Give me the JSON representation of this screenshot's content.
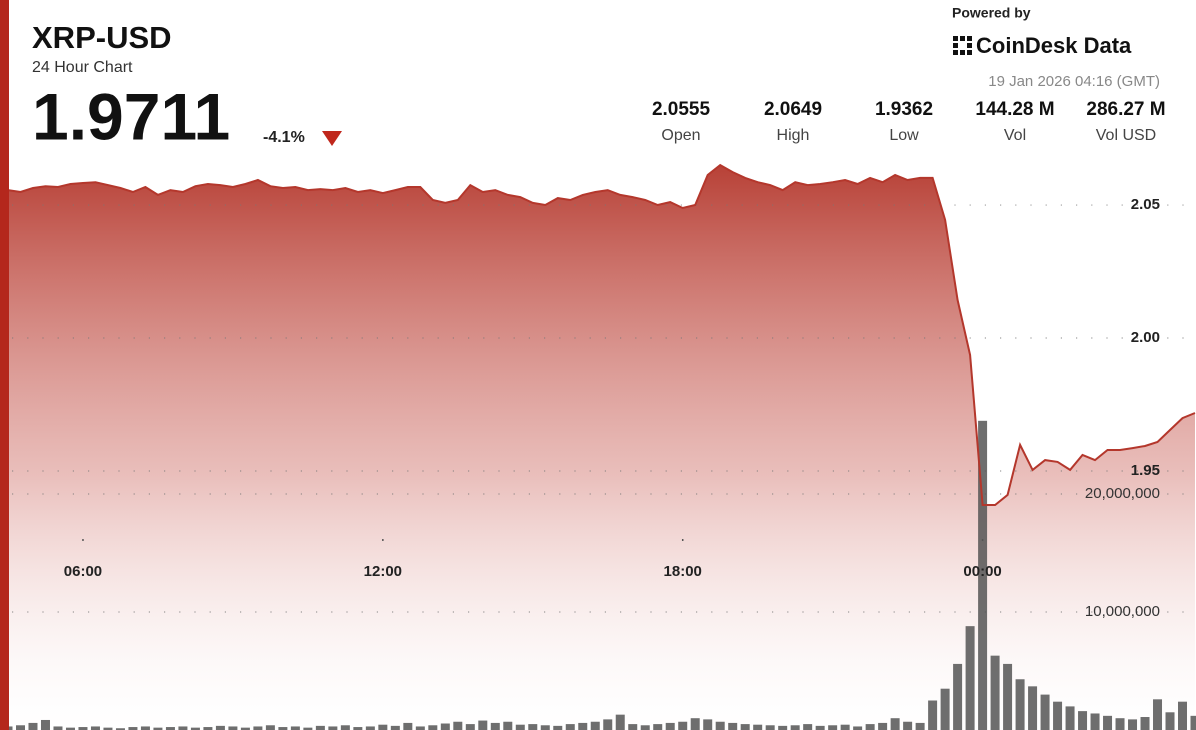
{
  "chart_data": {
    "type": "line",
    "title": "XRP-USD",
    "subtitle": "24 Hour Chart",
    "price": "1.9711",
    "change": "-4.1%",
    "stats": [
      {
        "value": "2.0555",
        "label": "Open"
      },
      {
        "value": "2.0649",
        "label": "High"
      },
      {
        "value": "1.9362",
        "label": "Low"
      },
      {
        "value": "144.28 M",
        "label": "Vol"
      },
      {
        "value": "286.27 M",
        "label": "Vol USD"
      }
    ],
    "powered_by": "Powered by",
    "brand": "CoinDesk Data",
    "timestamp": "19 Jan 2026 04:16 (GMT)",
    "x": [
      "04:30",
      "04:45",
      "05:00",
      "05:15",
      "05:30",
      "05:45",
      "06:00",
      "06:15",
      "06:30",
      "06:45",
      "07:00",
      "07:15",
      "07:30",
      "07:45",
      "08:00",
      "08:15",
      "08:30",
      "08:45",
      "09:00",
      "09:15",
      "09:30",
      "09:45",
      "10:00",
      "10:15",
      "10:30",
      "10:45",
      "11:00",
      "11:15",
      "11:30",
      "11:45",
      "12:00",
      "12:15",
      "12:30",
      "12:45",
      "13:00",
      "13:15",
      "13:30",
      "13:45",
      "14:00",
      "14:15",
      "14:30",
      "14:45",
      "15:00",
      "15:15",
      "15:30",
      "15:45",
      "16:00",
      "16:15",
      "16:30",
      "16:45",
      "17:00",
      "17:15",
      "17:30",
      "17:45",
      "18:00",
      "18:15",
      "18:30",
      "18:45",
      "19:00",
      "19:15",
      "19:30",
      "19:45",
      "20:00",
      "20:15",
      "20:30",
      "20:45",
      "21:00",
      "21:15",
      "21:30",
      "21:45",
      "22:00",
      "22:15",
      "22:30",
      "22:45",
      "23:00",
      "23:15",
      "23:30",
      "23:45",
      "00:00",
      "00:15",
      "00:30",
      "00:45",
      "01:00",
      "01:15",
      "01:30",
      "01:45",
      "02:00",
      "02:15",
      "02:30",
      "02:45",
      "03:00",
      "03:15",
      "03:30",
      "03:45",
      "04:00",
      "04:15"
    ],
    "xticks": [
      "06:00",
      "12:00",
      "18:00",
      "00:00"
    ],
    "series": [
      {
        "color": "#b4372c",
        "values": [
          2.0556,
          2.0549,
          2.0564,
          2.0571,
          2.0568,
          2.0579,
          2.0583,
          2.0586,
          2.0575,
          2.0564,
          2.0549,
          2.0568,
          2.0538,
          2.0556,
          2.0549,
          2.0571,
          2.0579,
          2.0575,
          2.0568,
          2.0579,
          2.0594,
          2.0571,
          2.0564,
          2.0568,
          2.0556,
          2.056,
          2.0556,
          2.0564,
          2.0549,
          2.0556,
          2.0545,
          2.0556,
          2.0568,
          2.0568,
          2.0519,
          2.0508,
          2.0519,
          2.0575,
          2.0549,
          2.0556,
          2.0538,
          2.053,
          2.0508,
          2.05,
          2.0526,
          2.0519,
          2.0538,
          2.0549,
          2.0556,
          2.0538,
          2.053,
          2.0519,
          2.05,
          2.0511,
          2.0489,
          2.05,
          2.0613,
          2.065,
          2.0624,
          2.0602,
          2.0586,
          2.0575,
          2.0556,
          2.0586,
          2.0575,
          2.0579,
          2.0586,
          2.0594,
          2.0579,
          2.0602,
          2.0586,
          2.0613,
          2.0594,
          2.0602,
          2.0602,
          2.0444,
          2.0143,
          1.9936,
          1.9372,
          1.9372,
          1.941,
          1.9598,
          1.9504,
          1.9541,
          1.9534,
          1.9504,
          1.956,
          1.9541,
          1.9579,
          1.9579,
          1.9586,
          1.9594,
          1.9609,
          1.9654,
          1.9699,
          1.9718
        ]
      },
      {
        "color": "#555555",
        "axis": "y2",
        "values": [
          300000,
          400000,
          600000,
          850000,
          300000,
          200000,
          250000,
          300000,
          200000,
          150000,
          250000,
          300000,
          200000,
          250000,
          300000,
          200000,
          250000,
          350000,
          300000,
          200000,
          300000,
          400000,
          250000,
          300000,
          200000,
          350000,
          300000,
          400000,
          250000,
          300000,
          450000,
          350000,
          600000,
          300000,
          400000,
          550000,
          700000,
          500000,
          800000,
          600000,
          700000,
          450000,
          500000,
          400000,
          350000,
          500000,
          600000,
          700000,
          900000,
          1300000,
          500000,
          400000,
          500000,
          600000,
          700000,
          1000000,
          900000,
          700000,
          600000,
          500000,
          450000,
          400000,
          350000,
          400000,
          500000,
          350000,
          400000,
          450000,
          300000,
          500000,
          600000,
          1000000,
          700000,
          600000,
          2500000,
          3500000,
          5600000,
          8800000,
          26200000,
          6300000,
          5600000,
          4300000,
          3700000,
          3000000,
          2400000,
          2000000,
          1600000,
          1400000,
          1200000,
          1000000,
          900000,
          1100000,
          2600000,
          1500000,
          2400000,
          1200000
        ]
      }
    ],
    "ylim": [
      1.8526,
      2.1271
    ],
    "yticks": [
      {
        "value": 1.95,
        "label": "1.95"
      },
      {
        "value": 2.0,
        "label": "2.00"
      },
      {
        "value": 2.05,
        "label": "2.05"
      }
    ],
    "y2lim": [
      0,
      61860000
    ],
    "y2ticks": [
      {
        "value": 10000000,
        "label": "10,000,000"
      },
      {
        "value": 20000000,
        "label": "20,000,000"
      }
    ],
    "grid": true
  }
}
